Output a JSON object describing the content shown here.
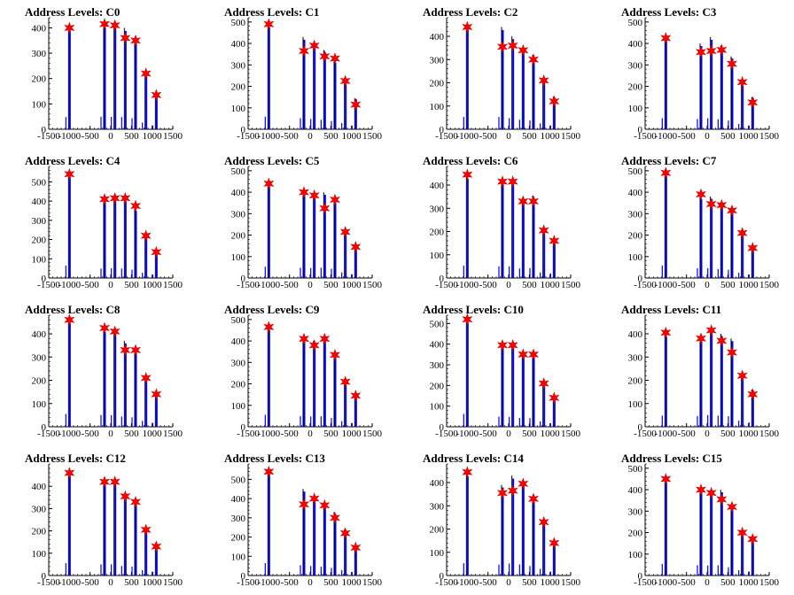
{
  "chart_data": [
    {
      "type": "bar",
      "title": "Address Levels: C0",
      "xlim": [
        -1500,
        1500
      ],
      "ylim": [
        0,
        440
      ],
      "x_ticks": [
        -1500,
        -1000,
        -500,
        0,
        500,
        1000,
        1500
      ],
      "y_ticks": [
        0,
        100,
        200,
        300,
        400
      ],
      "peaks": [
        {
          "x": -1000,
          "y": 400,
          "marker": 400
        },
        {
          "x": -150,
          "y": 415,
          "marker": 415
        },
        {
          "x": 100,
          "y": 410,
          "marker": 410
        },
        {
          "x": 350,
          "y": 400,
          "marker": 360
        },
        {
          "x": 600,
          "y": 360,
          "marker": 350
        },
        {
          "x": 850,
          "y": 220,
          "marker": 220
        },
        {
          "x": 1100,
          "y": 130,
          "marker": 135
        }
      ]
    },
    {
      "type": "bar",
      "title": "Address Levels: C1",
      "xlim": [
        -1500,
        1500
      ],
      "ylim": [
        0,
        520
      ],
      "x_ticks": [
        -1500,
        -1000,
        -500,
        0,
        500,
        1000,
        1500
      ],
      "y_ticks": [
        0,
        100,
        200,
        300,
        400,
        500
      ],
      "peaks": [
        {
          "x": -1000,
          "y": 490,
          "marker": 490
        },
        {
          "x": -150,
          "y": 430,
          "marker": 365
        },
        {
          "x": 100,
          "y": 400,
          "marker": 390
        },
        {
          "x": 350,
          "y": 370,
          "marker": 340
        },
        {
          "x": 600,
          "y": 320,
          "marker": 330
        },
        {
          "x": 850,
          "y": 240,
          "marker": 225
        },
        {
          "x": 1100,
          "y": 145,
          "marker": 115
        }
      ]
    },
    {
      "type": "bar",
      "title": "Address Levels: C2",
      "xlim": [
        -1500,
        1500
      ],
      "ylim": [
        0,
        480
      ],
      "x_ticks": [
        -1500,
        -1000,
        -500,
        0,
        500,
        1000,
        1500
      ],
      "y_ticks": [
        0,
        100,
        200,
        300,
        400
      ],
      "peaks": [
        {
          "x": -1000,
          "y": 440,
          "marker": 440
        },
        {
          "x": -150,
          "y": 440,
          "marker": 355
        },
        {
          "x": 100,
          "y": 400,
          "marker": 360
        },
        {
          "x": 350,
          "y": 340,
          "marker": 340
        },
        {
          "x": 600,
          "y": 320,
          "marker": 300
        },
        {
          "x": 850,
          "y": 210,
          "marker": 210
        },
        {
          "x": 1100,
          "y": 140,
          "marker": 120
        }
      ]
    },
    {
      "type": "bar",
      "title": "Address Levels: C3",
      "xlim": [
        -1500,
        1500
      ],
      "ylim": [
        0,
        520
      ],
      "x_ticks": [
        -1500,
        -1000,
        -500,
        0,
        500,
        1000,
        1500
      ],
      "y_ticks": [
        0,
        100,
        200,
        300,
        400,
        500
      ],
      "peaks": [
        {
          "x": -1000,
          "y": 430,
          "marker": 425
        },
        {
          "x": -150,
          "y": 400,
          "marker": 360
        },
        {
          "x": 100,
          "y": 430,
          "marker": 365
        },
        {
          "x": 350,
          "y": 390,
          "marker": 370
        },
        {
          "x": 600,
          "y": 340,
          "marker": 305
        },
        {
          "x": 850,
          "y": 210,
          "marker": 220
        },
        {
          "x": 1100,
          "y": 150,
          "marker": 125
        }
      ]
    },
    {
      "type": "bar",
      "title": "Address Levels: C4",
      "xlim": [
        -1500,
        1500
      ],
      "ylim": [
        0,
        580
      ],
      "x_ticks": [
        -1500,
        -1000,
        -500,
        0,
        500,
        1000,
        1500
      ],
      "y_ticks": [
        0,
        100,
        200,
        300,
        400,
        500
      ],
      "peaks": [
        {
          "x": -1000,
          "y": 540,
          "marker": 540
        },
        {
          "x": -150,
          "y": 410,
          "marker": 410
        },
        {
          "x": 100,
          "y": 420,
          "marker": 415
        },
        {
          "x": 350,
          "y": 410,
          "marker": 415
        },
        {
          "x": 600,
          "y": 360,
          "marker": 375
        },
        {
          "x": 850,
          "y": 225,
          "marker": 220
        },
        {
          "x": 1100,
          "y": 150,
          "marker": 135
        }
      ]
    },
    {
      "type": "bar",
      "title": "Address Levels: C5",
      "xlim": [
        -1500,
        1500
      ],
      "ylim": [
        0,
        520
      ],
      "x_ticks": [
        -1500,
        -1000,
        -500,
        0,
        500,
        1000,
        1500
      ],
      "y_ticks": [
        0,
        100,
        200,
        300,
        400,
        500
      ],
      "peaks": [
        {
          "x": -1000,
          "y": 440,
          "marker": 440
        },
        {
          "x": -150,
          "y": 400,
          "marker": 400
        },
        {
          "x": 100,
          "y": 390,
          "marker": 385
        },
        {
          "x": 350,
          "y": 400,
          "marker": 325
        },
        {
          "x": 600,
          "y": 360,
          "marker": 365
        },
        {
          "x": 850,
          "y": 220,
          "marker": 215
        },
        {
          "x": 1100,
          "y": 150,
          "marker": 145
        }
      ]
    },
    {
      "type": "bar",
      "title": "Address Levels: C6",
      "xlim": [
        -1500,
        1500
      ],
      "ylim": [
        0,
        480
      ],
      "x_ticks": [
        -1500,
        -1000,
        -500,
        0,
        500,
        1000,
        1500
      ],
      "y_ticks": [
        0,
        100,
        200,
        300,
        400
      ],
      "peaks": [
        {
          "x": -1000,
          "y": 440,
          "marker": 445
        },
        {
          "x": -150,
          "y": 420,
          "marker": 415
        },
        {
          "x": 100,
          "y": 420,
          "marker": 415
        },
        {
          "x": 350,
          "y": 340,
          "marker": 330
        },
        {
          "x": 600,
          "y": 355,
          "marker": 330
        },
        {
          "x": 850,
          "y": 200,
          "marker": 205
        },
        {
          "x": 1100,
          "y": 165,
          "marker": 160
        }
      ]
    },
    {
      "type": "bar",
      "title": "Address Levels: C7",
      "xlim": [
        -1500,
        1500
      ],
      "ylim": [
        0,
        520
      ],
      "x_ticks": [
        -1500,
        -1000,
        -500,
        0,
        500,
        1000,
        1500
      ],
      "y_ticks": [
        0,
        100,
        200,
        300,
        400,
        500
      ],
      "peaks": [
        {
          "x": -1000,
          "y": 490,
          "marker": 490
        },
        {
          "x": -150,
          "y": 380,
          "marker": 390
        },
        {
          "x": 100,
          "y": 380,
          "marker": 345
        },
        {
          "x": 350,
          "y": 350,
          "marker": 340
        },
        {
          "x": 600,
          "y": 320,
          "marker": 315
        },
        {
          "x": 850,
          "y": 210,
          "marker": 210
        },
        {
          "x": 1100,
          "y": 140,
          "marker": 140
        }
      ]
    },
    {
      "type": "bar",
      "title": "Address Levels: C8",
      "xlim": [
        -1500,
        1500
      ],
      "ylim": [
        0,
        480
      ],
      "x_ticks": [
        -1500,
        -1000,
        -500,
        0,
        500,
        1000,
        1500
      ],
      "y_ticks": [
        0,
        100,
        200,
        300,
        400
      ],
      "peaks": [
        {
          "x": -1000,
          "y": 460,
          "marker": 460
        },
        {
          "x": -150,
          "y": 420,
          "marker": 425
        },
        {
          "x": 100,
          "y": 415,
          "marker": 410
        },
        {
          "x": 350,
          "y": 370,
          "marker": 330
        },
        {
          "x": 600,
          "y": 340,
          "marker": 330
        },
        {
          "x": 850,
          "y": 210,
          "marker": 210
        },
        {
          "x": 1100,
          "y": 145,
          "marker": 140
        }
      ]
    },
    {
      "type": "bar",
      "title": "Address Levels: C9",
      "xlim": [
        -1500,
        1500
      ],
      "ylim": [
        0,
        520
      ],
      "x_ticks": [
        -1500,
        -1000,
        -500,
        0,
        500,
        1000,
        1500
      ],
      "y_ticks": [
        0,
        100,
        200,
        300,
        400,
        500
      ],
      "peaks": [
        {
          "x": -1000,
          "y": 465,
          "marker": 465
        },
        {
          "x": -150,
          "y": 410,
          "marker": 410
        },
        {
          "x": 100,
          "y": 400,
          "marker": 380
        },
        {
          "x": 350,
          "y": 410,
          "marker": 410
        },
        {
          "x": 600,
          "y": 340,
          "marker": 335
        },
        {
          "x": 850,
          "y": 220,
          "marker": 210
        },
        {
          "x": 1100,
          "y": 150,
          "marker": 145
        }
      ]
    },
    {
      "type": "bar",
      "title": "Address Levels: C10",
      "xlim": [
        -1500,
        1500
      ],
      "ylim": [
        0,
        540
      ],
      "x_ticks": [
        -1500,
        -1000,
        -500,
        0,
        500,
        1000,
        1500
      ],
      "y_ticks": [
        0,
        100,
        200,
        300,
        400,
        500
      ],
      "peaks": [
        {
          "x": -1000,
          "y": 520,
          "marker": 520
        },
        {
          "x": -150,
          "y": 410,
          "marker": 395
        },
        {
          "x": 100,
          "y": 400,
          "marker": 395
        },
        {
          "x": 350,
          "y": 360,
          "marker": 350
        },
        {
          "x": 600,
          "y": 350,
          "marker": 350
        },
        {
          "x": 850,
          "y": 220,
          "marker": 210
        },
        {
          "x": 1100,
          "y": 140,
          "marker": 140
        }
      ]
    },
    {
      "type": "bar",
      "title": "Address Levels: C11",
      "xlim": [
        -1500,
        1500
      ],
      "ylim": [
        0,
        480
      ],
      "x_ticks": [
        -1500,
        -1000,
        -500,
        0,
        500,
        1000,
        1500
      ],
      "y_ticks": [
        0,
        100,
        200,
        300,
        400
      ],
      "peaks": [
        {
          "x": -1000,
          "y": 400,
          "marker": 405
        },
        {
          "x": -150,
          "y": 385,
          "marker": 380
        },
        {
          "x": 100,
          "y": 420,
          "marker": 415
        },
        {
          "x": 350,
          "y": 400,
          "marker": 370
        },
        {
          "x": 600,
          "y": 380,
          "marker": 320
        },
        {
          "x": 850,
          "y": 220,
          "marker": 220
        },
        {
          "x": 1100,
          "y": 160,
          "marker": 140
        }
      ]
    },
    {
      "type": "bar",
      "title": "Address Levels: C12",
      "xlim": [
        -1500,
        1500
      ],
      "ylim": [
        0,
        500
      ],
      "x_ticks": [
        -1500,
        -1000,
        -500,
        0,
        500,
        1000,
        1500
      ],
      "y_ticks": [
        0,
        100,
        200,
        300,
        400
      ],
      "peaks": [
        {
          "x": -1000,
          "y": 460,
          "marker": 460
        },
        {
          "x": -150,
          "y": 420,
          "marker": 420
        },
        {
          "x": 100,
          "y": 420,
          "marker": 420
        },
        {
          "x": 350,
          "y": 355,
          "marker": 355
        },
        {
          "x": 600,
          "y": 335,
          "marker": 330
        },
        {
          "x": 850,
          "y": 200,
          "marker": 205
        },
        {
          "x": 1100,
          "y": 145,
          "marker": 130
        }
      ]
    },
    {
      "type": "bar",
      "title": "Address Levels: C13",
      "xlim": [
        -1500,
        1500
      ],
      "ylim": [
        0,
        580
      ],
      "x_ticks": [
        -1500,
        -1000,
        -500,
        0,
        500,
        1000,
        1500
      ],
      "y_ticks": [
        0,
        100,
        200,
        300,
        400,
        500
      ],
      "peaks": [
        {
          "x": -1000,
          "y": 540,
          "marker": 540
        },
        {
          "x": -150,
          "y": 450,
          "marker": 370
        },
        {
          "x": 100,
          "y": 410,
          "marker": 400
        },
        {
          "x": 350,
          "y": 380,
          "marker": 365
        },
        {
          "x": 600,
          "y": 330,
          "marker": 300
        },
        {
          "x": 850,
          "y": 240,
          "marker": 220
        },
        {
          "x": 1100,
          "y": 155,
          "marker": 145
        }
      ]
    },
    {
      "type": "bar",
      "title": "Address Levels: C14",
      "xlim": [
        -1500,
        1500
      ],
      "ylim": [
        0,
        480
      ],
      "x_ticks": [
        -1500,
        -1000,
        -500,
        0,
        500,
        1000,
        1500
      ],
      "y_ticks": [
        0,
        100,
        200,
        300,
        400
      ],
      "peaks": [
        {
          "x": -1000,
          "y": 440,
          "marker": 445
        },
        {
          "x": -150,
          "y": 390,
          "marker": 355
        },
        {
          "x": 100,
          "y": 430,
          "marker": 365
        },
        {
          "x": 350,
          "y": 400,
          "marker": 395
        },
        {
          "x": 600,
          "y": 340,
          "marker": 330
        },
        {
          "x": 850,
          "y": 240,
          "marker": 230
        },
        {
          "x": 1100,
          "y": 145,
          "marker": 140
        }
      ]
    },
    {
      "type": "bar",
      "title": "Address Levels: C15",
      "xlim": [
        -1500,
        1500
      ],
      "ylim": [
        0,
        520
      ],
      "x_ticks": [
        -1500,
        -1000,
        -500,
        0,
        500,
        1000,
        1500
      ],
      "y_ticks": [
        0,
        100,
        200,
        300,
        400,
        500
      ],
      "peaks": [
        {
          "x": -1000,
          "y": 450,
          "marker": 450
        },
        {
          "x": -150,
          "y": 400,
          "marker": 400
        },
        {
          "x": 100,
          "y": 390,
          "marker": 385
        },
        {
          "x": 350,
          "y": 400,
          "marker": 355
        },
        {
          "x": 600,
          "y": 320,
          "marker": 320
        },
        {
          "x": 850,
          "y": 210,
          "marker": 200
        },
        {
          "x": 1100,
          "y": 160,
          "marker": 170
        }
      ]
    }
  ],
  "colors": {
    "bar": "#0000ff",
    "spike": "#000000",
    "marker": "#ff0000",
    "axis": "#000000"
  }
}
